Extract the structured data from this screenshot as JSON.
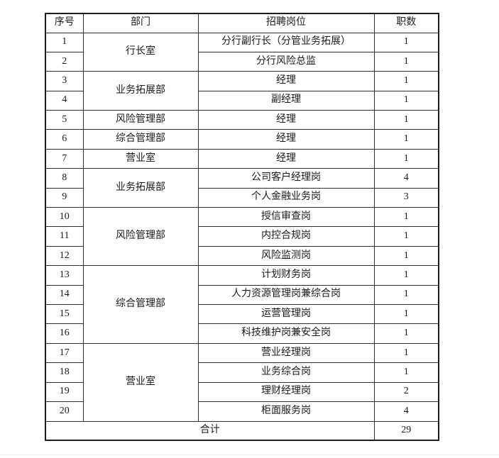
{
  "table": {
    "headers": [
      "序号",
      "部门",
      "招聘岗位",
      "职数"
    ],
    "rows": [
      {
        "no": "1",
        "dept": "行长室",
        "dept_rowspan": 2,
        "position": "分行副行长（分管业务拓展）",
        "count": "1"
      },
      {
        "no": "2",
        "position": "分行风险总监",
        "count": "1"
      },
      {
        "no": "3",
        "dept": "业务拓展部",
        "dept_rowspan": 2,
        "position": "经理",
        "count": "1"
      },
      {
        "no": "4",
        "position": "副经理",
        "count": "1"
      },
      {
        "no": "5",
        "dept": "风险管理部",
        "dept_rowspan": 1,
        "position": "经理",
        "count": "1"
      },
      {
        "no": "6",
        "dept": "综合管理部",
        "dept_rowspan": 1,
        "position": "经理",
        "count": "1"
      },
      {
        "no": "7",
        "dept": "营业室",
        "dept_rowspan": 1,
        "position": "经理",
        "count": "1"
      },
      {
        "no": "8",
        "dept": "业务拓展部",
        "dept_rowspan": 2,
        "position": "公司客户经理岗",
        "count": "4"
      },
      {
        "no": "9",
        "position": "个人金融业务岗",
        "count": "3"
      },
      {
        "no": "10",
        "dept": "风险管理部",
        "dept_rowspan": 3,
        "position": "授信审查岗",
        "count": "1"
      },
      {
        "no": "11",
        "position": "内控合规岗",
        "count": "1"
      },
      {
        "no": "12",
        "position": "风险监测岗",
        "count": "1"
      },
      {
        "no": "13",
        "dept": "综合管理部",
        "dept_rowspan": 4,
        "position": "计划财务岗",
        "count": "1"
      },
      {
        "no": "14",
        "position": "人力资源管理岗兼综合岗",
        "count": "1"
      },
      {
        "no": "15",
        "position": "运营管理岗",
        "count": "1"
      },
      {
        "no": "16",
        "position": "科技维护岗兼安全岗",
        "count": "1"
      },
      {
        "no": "17",
        "dept": "营业室",
        "dept_rowspan": 4,
        "position": "营业经理岗",
        "count": "1"
      },
      {
        "no": "18",
        "position": "业务综合岗",
        "count": "1"
      },
      {
        "no": "19",
        "position": "理财经理岗",
        "count": "2"
      },
      {
        "no": "20",
        "position": "柜面服务岗",
        "count": "4"
      }
    ],
    "footer": {
      "label": "合计",
      "total": "29"
    }
  },
  "colors": {
    "border_outer": "#1c1c1c",
    "border_inner": "#2e2e2e",
    "text": "#1a1a1a",
    "bottom_divider": "#ececec"
  }
}
